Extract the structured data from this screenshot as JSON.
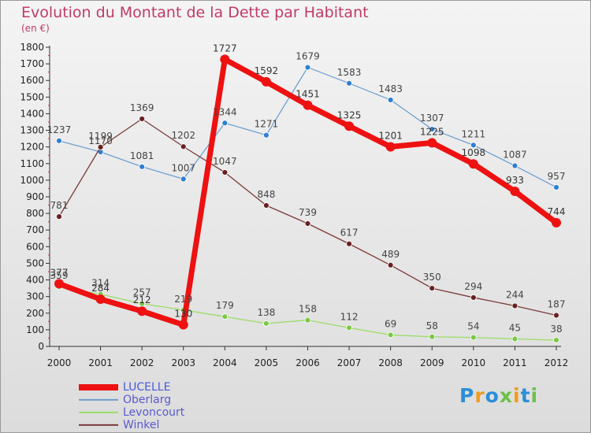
{
  "page": {
    "title": "Evolution du Montant de la Dette par Habitant",
    "unit": "(en €)",
    "logo_letters": [
      {
        "ch": "P",
        "color": "#2a8ed8"
      },
      {
        "ch": "r",
        "color": "#f39a1d"
      },
      {
        "ch": "o",
        "color": "#2a8ed8"
      },
      {
        "ch": "x",
        "color": "#6cc04a"
      },
      {
        "ch": "i",
        "color": "#f39a1d"
      },
      {
        "ch": "t",
        "color": "#2a8ed8"
      },
      {
        "ch": "i",
        "color": "#6cc04a"
      }
    ]
  },
  "chart_data": {
    "type": "line",
    "x": [
      2000,
      2001,
      2002,
      2003,
      2004,
      2005,
      2006,
      2007,
      2008,
      2009,
      2010,
      2011,
      2012
    ],
    "ylim": [
      0,
      1800
    ],
    "yticks": [
      0,
      100,
      200,
      300,
      400,
      500,
      600,
      700,
      800,
      900,
      1000,
      1100,
      1200,
      1300,
      1400,
      1500,
      1600,
      1700,
      1800
    ],
    "grid": false,
    "legend_position": "bottom-left",
    "series": [
      {
        "name": "LUCELLE",
        "color": "#ee1111",
        "marker": "#ee1111",
        "label_color": "#333333",
        "width": 7,
        "radius": 6,
        "values": [
          377,
          284,
          212,
          130,
          1727,
          1592,
          1451,
          1325,
          1201,
          1225,
          1098,
          933,
          744
        ]
      },
      {
        "name": "Oberlarg",
        "color": "#6fa0d0",
        "marker": "#2f7fd0",
        "label_color": "#444444",
        "width": 1.3,
        "radius": 3.5,
        "values": [
          1237,
          1170,
          1081,
          1007,
          1344,
          1271,
          1679,
          1583,
          1483,
          1307,
          1211,
          1087,
          957
        ]
      },
      {
        "name": "Levoncourt",
        "color": "#99dd66",
        "marker": "#7cc846",
        "label_color": "#444444",
        "width": 1.3,
        "radius": 3.5,
        "values": [
          359,
          314,
          257,
          219,
          179,
          138,
          158,
          112,
          69,
          58,
          54,
          45,
          38
        ]
      },
      {
        "name": "Winkel",
        "color": "#7a3a3a",
        "marker": "#6a2020",
        "label_color": "#444444",
        "width": 1.3,
        "radius": 3.5,
        "values": [
          781,
          1199,
          1369,
          1202,
          1047,
          848,
          739,
          617,
          489,
          350,
          294,
          244,
          187
        ]
      }
    ]
  }
}
